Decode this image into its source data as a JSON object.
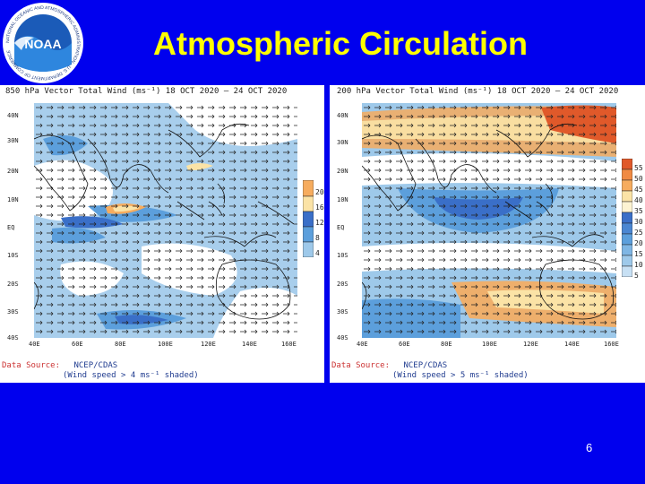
{
  "slide": {
    "title": "Atmospheric Circulation",
    "page_number": "6",
    "logo_text": "NOAA",
    "logo_ring_text": "NATIONAL OCEANIC AND ATMOSPHERIC ADMINISTRATION · U.S. DEPARTMENT OF COMMERCE"
  },
  "left_panel": {
    "title": "850 hPa Vector Total Wind (ms⁻¹) 18 OCT 2020 – 24 OCT 2020",
    "lat_labels": [
      "40N",
      "30N",
      "20N",
      "10N",
      "EQ",
      "10S",
      "20S",
      "30S",
      "40S"
    ],
    "lon_labels": [
      "40E",
      "60E",
      "80E",
      "100E",
      "120E",
      "140E",
      "160E"
    ],
    "colorbar_labels": [
      "20",
      "16",
      "12",
      "8",
      "4"
    ],
    "source_label": "Data Source:",
    "source_value": "NCEP/CDAS",
    "note": "(Wind speed > 4 ms⁻¹ shaded)"
  },
  "right_panel": {
    "title": "200 hPa Vector Total Wind (ms⁻¹) 18 OCT 2020 – 24 OCT 2020",
    "lat_labels": [
      "40N",
      "30N",
      "20N",
      "10N",
      "EQ",
      "10S",
      "20S",
      "30S",
      "40S"
    ],
    "lon_labels": [
      "40E",
      "60E",
      "80E",
      "100E",
      "120E",
      "140E",
      "160E"
    ],
    "colorbar_labels": [
      "55",
      "50",
      "45",
      "40",
      "35",
      "30",
      "25",
      "20",
      "15",
      "10",
      "5"
    ],
    "source_label": "Data Source:",
    "source_value": "NCEP/CDAS",
    "note": "(Wind speed > 5 ms⁻¹ shaded)"
  },
  "colors": {
    "background": "#0000ee",
    "title": "#ffff00",
    "shade_light": "#9ec9ea",
    "shade_mid": "#5c9fdc",
    "shade_dark": "#3a6fc8",
    "warm_1": "#fbe3a6",
    "warm_2": "#f6ac5e",
    "warm_3": "#e0592a"
  }
}
